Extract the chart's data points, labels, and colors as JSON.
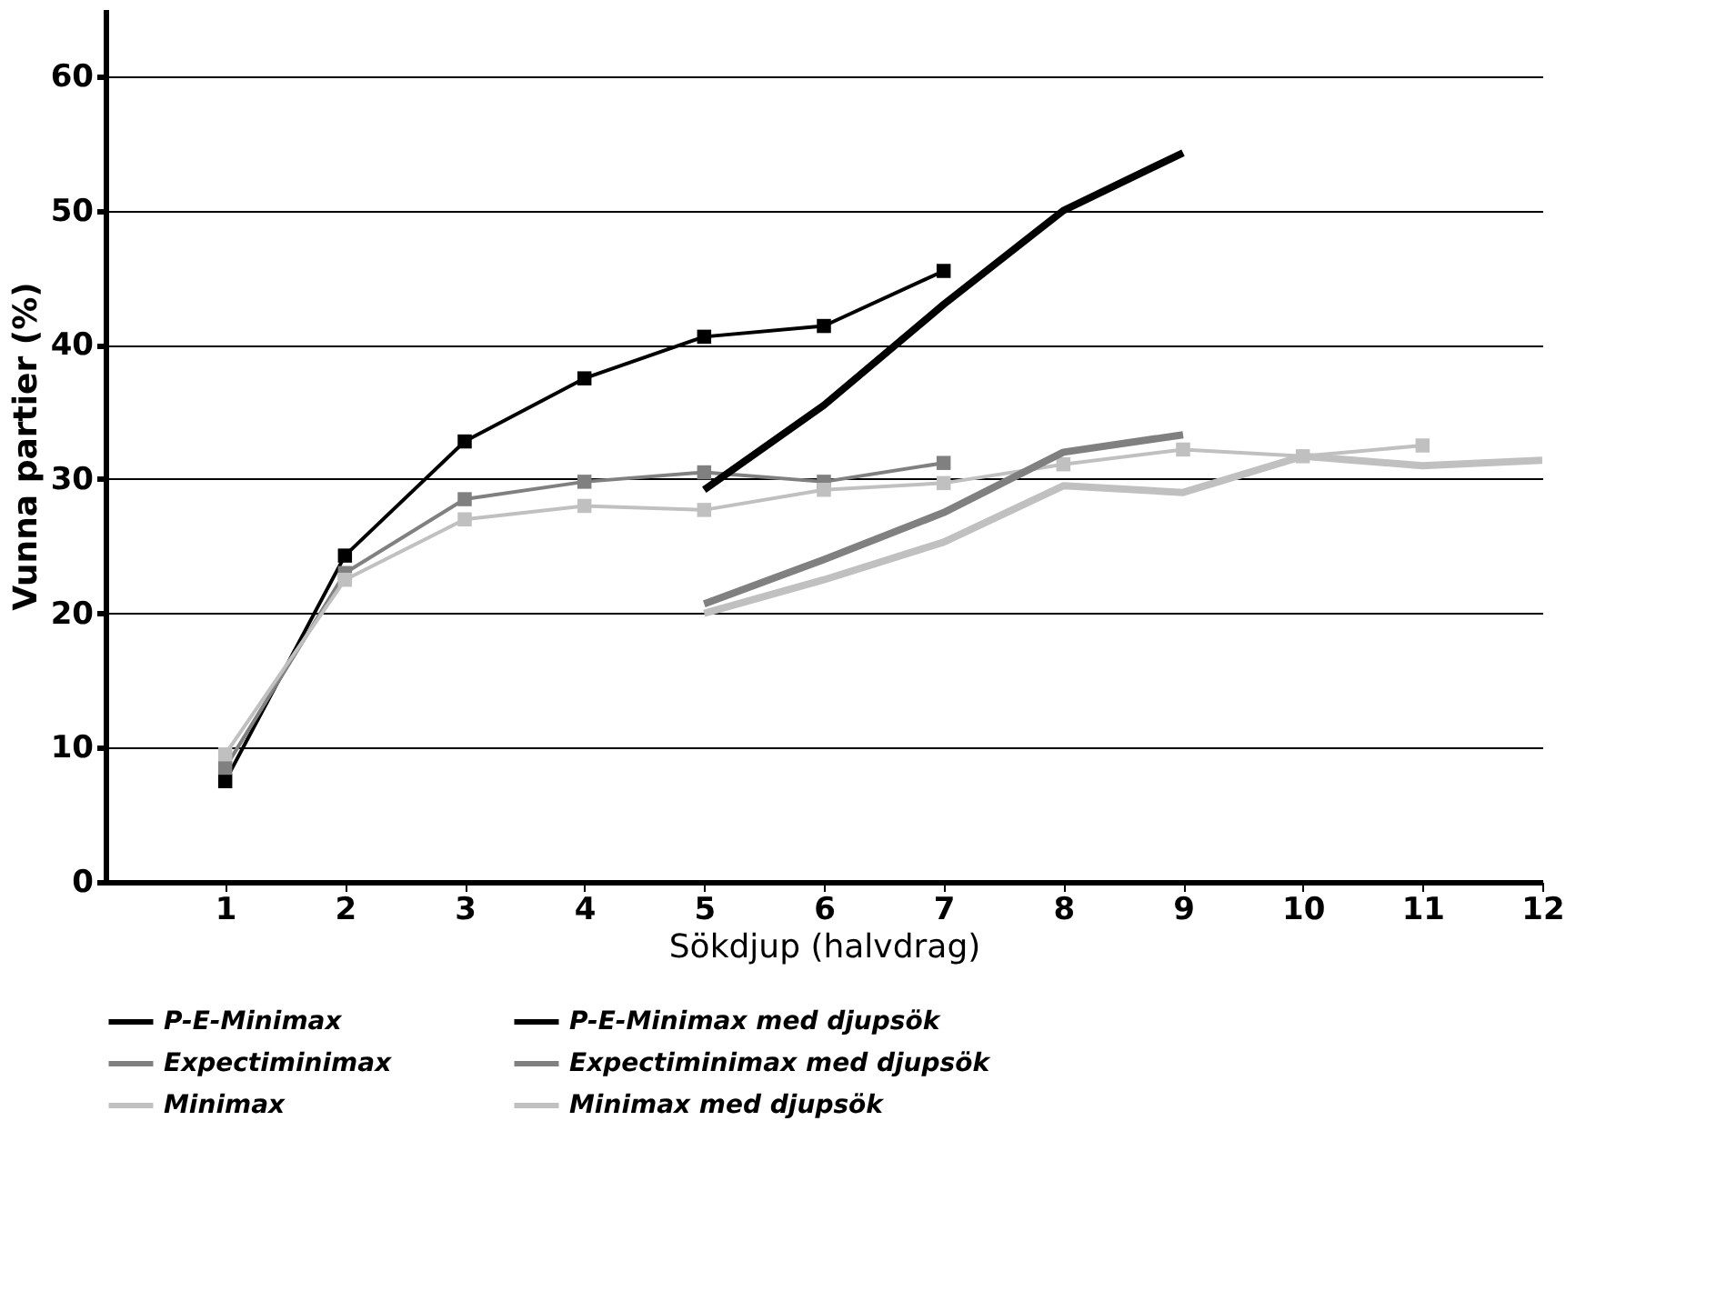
{
  "chart_data": {
    "type": "line",
    "xlabel": "Sökdjup (halvdrag)",
    "ylabel": "Vunna partier (%)",
    "xlim": [
      0,
      12
    ],
    "xticks": [
      1,
      2,
      3,
      4,
      5,
      6,
      7,
      8,
      9,
      10,
      11,
      12
    ],
    "ylim": [
      0,
      65
    ],
    "yticks": [
      0,
      10,
      20,
      30,
      40,
      50,
      60
    ],
    "grid": "y",
    "legend": "bottom",
    "series": [
      {
        "name": "P-E-Minimax",
        "color": "#000000",
        "marker": "square",
        "x": [
          1,
          2,
          3,
          4,
          5,
          6,
          7
        ],
        "values": [
          7.5,
          24.3,
          32.8,
          37.5,
          40.6,
          41.4,
          45.5
        ]
      },
      {
        "name": "Expectiminimax",
        "color": "#808080",
        "marker": "square",
        "x": [
          1,
          2,
          3,
          4,
          5,
          6,
          7
        ],
        "values": [
          8.5,
          23,
          28.5,
          29.8,
          30.5,
          29.8,
          31.2
        ]
      },
      {
        "name": "Minimax",
        "color": "#c0c0c0",
        "marker": "square",
        "x": [
          1,
          2,
          3,
          4,
          5,
          6,
          7,
          8,
          9,
          10,
          11
        ],
        "values": [
          9.5,
          22.5,
          27,
          28,
          27.7,
          29.2,
          29.7,
          31.1,
          32.2,
          31.7,
          32.5
        ]
      },
      {
        "name": "P-E-Minimax med djupsök",
        "color": "#000000",
        "marker": "none",
        "x": [
          5,
          6,
          7,
          8,
          9
        ],
        "values": [
          29.2,
          35.5,
          43,
          50,
          54.3
        ]
      },
      {
        "name": "Expectiminimax med djupsök",
        "color": "#808080",
        "marker": "none",
        "x": [
          5,
          6,
          7,
          8,
          9
        ],
        "values": [
          20.7,
          24,
          27.5,
          32,
          33.3
        ]
      },
      {
        "name": "Minimax med djupsök",
        "color": "#c0c0c0",
        "marker": "none",
        "x": [
          5,
          6,
          7,
          8,
          9,
          10,
          11,
          12
        ],
        "values": [
          20,
          22.5,
          25.3,
          29.5,
          29,
          31.7,
          31,
          31.4
        ]
      }
    ]
  }
}
